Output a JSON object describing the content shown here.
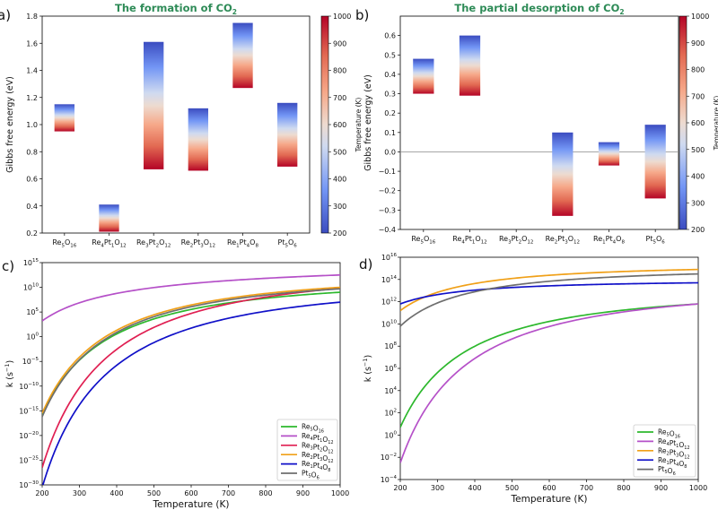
{
  "chart_data": [
    {
      "panel": "a)",
      "type": "bar",
      "title": "The formation of CO",
      "title_sub": "2",
      "ylabel": "Gibbs free energy (eV)",
      "ylim": [
        0.2,
        1.8
      ],
      "yticks": [
        0.2,
        0.4,
        0.6,
        0.8,
        1.0,
        1.2,
        1.4,
        1.6,
        1.8
      ],
      "categories": [
        {
          "base": "Re",
          "sub": "5",
          "base2": "O",
          "sub2": "16",
          "base3": "",
          "sub3": ""
        },
        {
          "base": "Re",
          "sub": "4",
          "base2": "Pt",
          "sub2": "1",
          "base3": "O",
          "sub3": "12"
        },
        {
          "base": "Re",
          "sub": "3",
          "base2": "Pt",
          "sub2": "2",
          "base3": "O",
          "sub3": "12"
        },
        {
          "base": "Re",
          "sub": "2",
          "base2": "Pt",
          "sub2": "3",
          "base3": "O",
          "sub3": "12"
        },
        {
          "base": "Re",
          "sub": "1",
          "base2": "Pt",
          "sub2": "4",
          "base3": "O",
          "sub3": "8"
        },
        {
          "base": "Pt",
          "sub": "5",
          "base2": "O",
          "sub2": "6",
          "base3": "",
          "sub3": ""
        }
      ],
      "ranges": [
        [
          0.95,
          1.15
        ],
        [
          0.21,
          0.41
        ],
        [
          0.67,
          1.61
        ],
        [
          0.66,
          1.12
        ],
        [
          1.27,
          1.75
        ],
        [
          0.69,
          1.16
        ]
      ],
      "colorbar": {
        "label": "Temperature (K)",
        "min": 200,
        "max": 1000,
        "ticks": [
          200,
          300,
          400,
          500,
          600,
          700,
          800,
          900,
          1000
        ]
      },
      "gradient_top": "low_T"
    },
    {
      "panel": "b)",
      "type": "bar",
      "title": "The partial desorption of CO",
      "title_sub": "2",
      "ylabel": "Gibbs free energy (eV)",
      "ylim": [
        -0.4,
        0.7
      ],
      "yticks": [
        -0.4,
        -0.3,
        -0.2,
        -0.1,
        0.0,
        0.1,
        0.2,
        0.3,
        0.4,
        0.5,
        0.6
      ],
      "categories": [
        {
          "base": "Re",
          "sub": "5",
          "base2": "O",
          "sub2": "16",
          "base3": "",
          "sub3": ""
        },
        {
          "base": "Re",
          "sub": "4",
          "base2": "Pt",
          "sub2": "1",
          "base3": "O",
          "sub3": "12"
        },
        {
          "base": "Re",
          "sub": "3",
          "base2": "Pt",
          "sub2": "2",
          "base3": "O",
          "sub3": "12"
        },
        {
          "base": "Re",
          "sub": "2",
          "base2": "Pt",
          "sub2": "3",
          "base3": "O",
          "sub3": "12"
        },
        {
          "base": "Re",
          "sub": "1",
          "base2": "Pt",
          "sub2": "4",
          "base3": "O",
          "sub3": "8"
        },
        {
          "base": "Pt",
          "sub": "5",
          "base2": "O",
          "sub2": "6",
          "base3": "",
          "sub3": ""
        }
      ],
      "ranges": [
        [
          0.3,
          0.48
        ],
        [
          0.29,
          0.6
        ],
        null,
        [
          -0.33,
          0.1
        ],
        [
          -0.07,
          0.05
        ],
        [
          -0.24,
          0.14
        ]
      ],
      "hline": 0,
      "colorbar": {
        "label": "Temperature (K)",
        "min": 200,
        "max": 1000,
        "ticks": [
          200,
          300,
          400,
          500,
          600,
          700,
          800,
          900,
          1000
        ]
      },
      "gradient_top": "low_T"
    },
    {
      "panel": "c)",
      "type": "line",
      "yscale": "log",
      "xlabel": "Temperature (K)",
      "ylabel": "k (s",
      "ylabel_sup": "−1",
      "xlim": [
        200,
        1000
      ],
      "xticks": [
        200,
        300,
        400,
        500,
        600,
        700,
        800,
        900,
        1000
      ],
      "ylim_exp": [
        -30,
        15
      ],
      "yticks_exp": [
        -30,
        -25,
        -20,
        -15,
        -10,
        -5,
        0,
        5,
        10,
        15
      ],
      "legend_loc": "lower right",
      "series": [
        {
          "name_parts": [
            [
              "Re",
              "5"
            ],
            [
              "O",
              "16"
            ]
          ],
          "color": "#2db82d",
          "y200": -15.8,
          "y1000": 9.0,
          "c": -6.3
        },
        {
          "name_parts": [
            [
              "Re",
              "4"
            ],
            [
              "Pt",
              "1"
            ],
            [
              "O",
              "12"
            ]
          ],
          "color": "#b550c8",
          "y200": 3.2,
          "y1000": 12.5,
          "c": 1.8
        },
        {
          "name_parts": [
            [
              "Re",
              "3"
            ],
            [
              "Pt",
              "2"
            ],
            [
              "O",
              "12"
            ]
          ],
          "color": "#e01f52",
          "y200": -26.5,
          "y1000": 9.8,
          "c": -9.2
        },
        {
          "name_parts": [
            [
              "Re",
              "2"
            ],
            [
              "Pt",
              "3"
            ],
            [
              "O",
              "12"
            ]
          ],
          "color": "#f0a018",
          "y200": -15.5,
          "y1000": 10.0,
          "c": -6.4
        },
        {
          "name_parts": [
            [
              "Re",
              "1"
            ],
            [
              "Pt",
              "4"
            ],
            [
              "O",
              "8"
            ]
          ],
          "color": "#1010c8",
          "y200": -30.5,
          "y1000": 7.0,
          "c": -9.4
        },
        {
          "name_parts": [
            [
              "Pt",
              "5"
            ],
            [
              "O",
              "6"
            ]
          ],
          "color": "#6e6e6e",
          "y200": -16.2,
          "y1000": 9.7,
          "c": -6.5
        }
      ]
    },
    {
      "panel": "d)",
      "type": "line",
      "yscale": "log",
      "xlabel": "Temperature (K)",
      "ylabel": "k (s",
      "ylabel_sup": "−1",
      "xlim": [
        200,
        1000
      ],
      "xticks": [
        200,
        300,
        400,
        500,
        600,
        700,
        800,
        900,
        1000
      ],
      "ylim_exp": [
        -4,
        16
      ],
      "yticks_exp": [
        -4,
        -2,
        0,
        2,
        4,
        6,
        8,
        10,
        12,
        14,
        16
      ],
      "legend_loc": "lower right",
      "series": [
        {
          "name_parts": [
            [
              "Re",
              "5"
            ],
            [
              "O",
              "16"
            ]
          ],
          "color": "#2db82d",
          "y200": 0.7,
          "y1000": 11.8,
          "c": -2.6
        },
        {
          "name_parts": [
            [
              "Re",
              "4"
            ],
            [
              "Pt",
              "1"
            ],
            [
              "O",
              "12"
            ]
          ],
          "color": "#b550c8",
          "y200": -2.5,
          "y1000": 11.8,
          "c": -3.35
        },
        {
          "name_parts": [
            [
              "Re",
              "2"
            ],
            [
              "Pt",
              "3"
            ],
            [
              "O",
              "12"
            ]
          ],
          "color": "#f0a018",
          "y200": 11.2,
          "y1000": 14.9,
          "c": -0.9
        },
        {
          "name_parts": [
            [
              "Re",
              "1"
            ],
            [
              "Pt",
              "4"
            ],
            [
              "O",
              "8"
            ]
          ],
          "color": "#1010c8",
          "y200": 11.8,
          "y1000": 13.7,
          "c": -0.4
        },
        {
          "name_parts": [
            [
              "Pt",
              "5"
            ],
            [
              "O",
              "6"
            ]
          ],
          "color": "#6e6e6e",
          "y200": 9.8,
          "y1000": 14.5,
          "c": -1.15
        }
      ]
    }
  ]
}
